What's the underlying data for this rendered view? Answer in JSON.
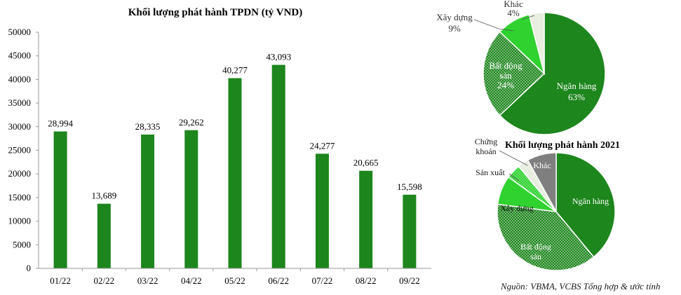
{
  "source_note": "Nguồn: VBMA, VCBS Tổng hợp & ước tính",
  "colors": {
    "bar": "#1d861d",
    "pie_green_dark": "#1d861d",
    "pie_green_bright": "#2fd22f",
    "pie_light": "#e8eee0",
    "pie_gray": "#7f7f7f"
  },
  "chart_data": [
    {
      "type": "bar",
      "title": "Khối lượng phát hành TPDN (tỷ VND)",
      "xlabel": "",
      "ylabel": "",
      "categories": [
        "01/22",
        "02/22",
        "03/22",
        "04/22",
        "05/22",
        "06/22",
        "07/22",
        "08/22",
        "09/22"
      ],
      "values": [
        28994,
        13689,
        28335,
        29262,
        40277,
        43093,
        24277,
        20665,
        15598
      ],
      "value_labels": [
        "28,994",
        "13,689",
        "28,335",
        "29,262",
        "40,277",
        "43,093",
        "24,277",
        "20,665",
        "15,598"
      ],
      "ylim": [
        0,
        50000
      ],
      "yticks": [
        "0",
        "5000",
        "10000",
        "15000",
        "20000",
        "25000",
        "30000",
        "35000",
        "40000",
        "45000",
        "50000"
      ],
      "ytick_values": [
        0,
        5000,
        10000,
        15000,
        20000,
        25000,
        30000,
        35000,
        40000,
        45000,
        50000
      ],
      "grid": false,
      "color": "#1d861d"
    },
    {
      "type": "pie",
      "title": "",
      "slices": [
        {
          "label": "Ngân hàng",
          "pct_label": "63%",
          "value": 63,
          "color": "#1d861d",
          "pattern": "solid"
        },
        {
          "label": "Bất động sản",
          "label_lines": [
            "Bất động",
            "sản"
          ],
          "pct_label": "24%",
          "value": 24,
          "color": "#1d861d",
          "pattern": "dots"
        },
        {
          "label": "Xây dựng",
          "pct_label": "9%",
          "value": 9,
          "color": "#2fd22f",
          "pattern": "solid"
        },
        {
          "label": "Khác",
          "pct_label": "4%",
          "value": 4,
          "color": "#e8eee0",
          "pattern": "solid"
        }
      ]
    },
    {
      "type": "pie",
      "title": "Khối lượng phát hành 2021",
      "slices": [
        {
          "label": "Ngân hàng",
          "value": 39,
          "color": "#1d861d",
          "pattern": "solid"
        },
        {
          "label": "Bất động sản",
          "label_lines": [
            "Bất động",
            "sản"
          ],
          "value": 38,
          "color": "#1d861d",
          "pattern": "dots"
        },
        {
          "label": "Xây dựng",
          "value": 8,
          "color": "#2fd22f",
          "pattern": "solid"
        },
        {
          "label": "Sản xuất",
          "value": 4,
          "color": "#2fd22f",
          "pattern": "dots"
        },
        {
          "label": "Chứng khoán",
          "label_lines": [
            "Chứng",
            "khoán"
          ],
          "value": 3,
          "color": "#e8eee0",
          "pattern": "solid"
        },
        {
          "label": "Khác",
          "value": 8,
          "color": "#7f7f7f",
          "pattern": "solid"
        }
      ]
    }
  ]
}
